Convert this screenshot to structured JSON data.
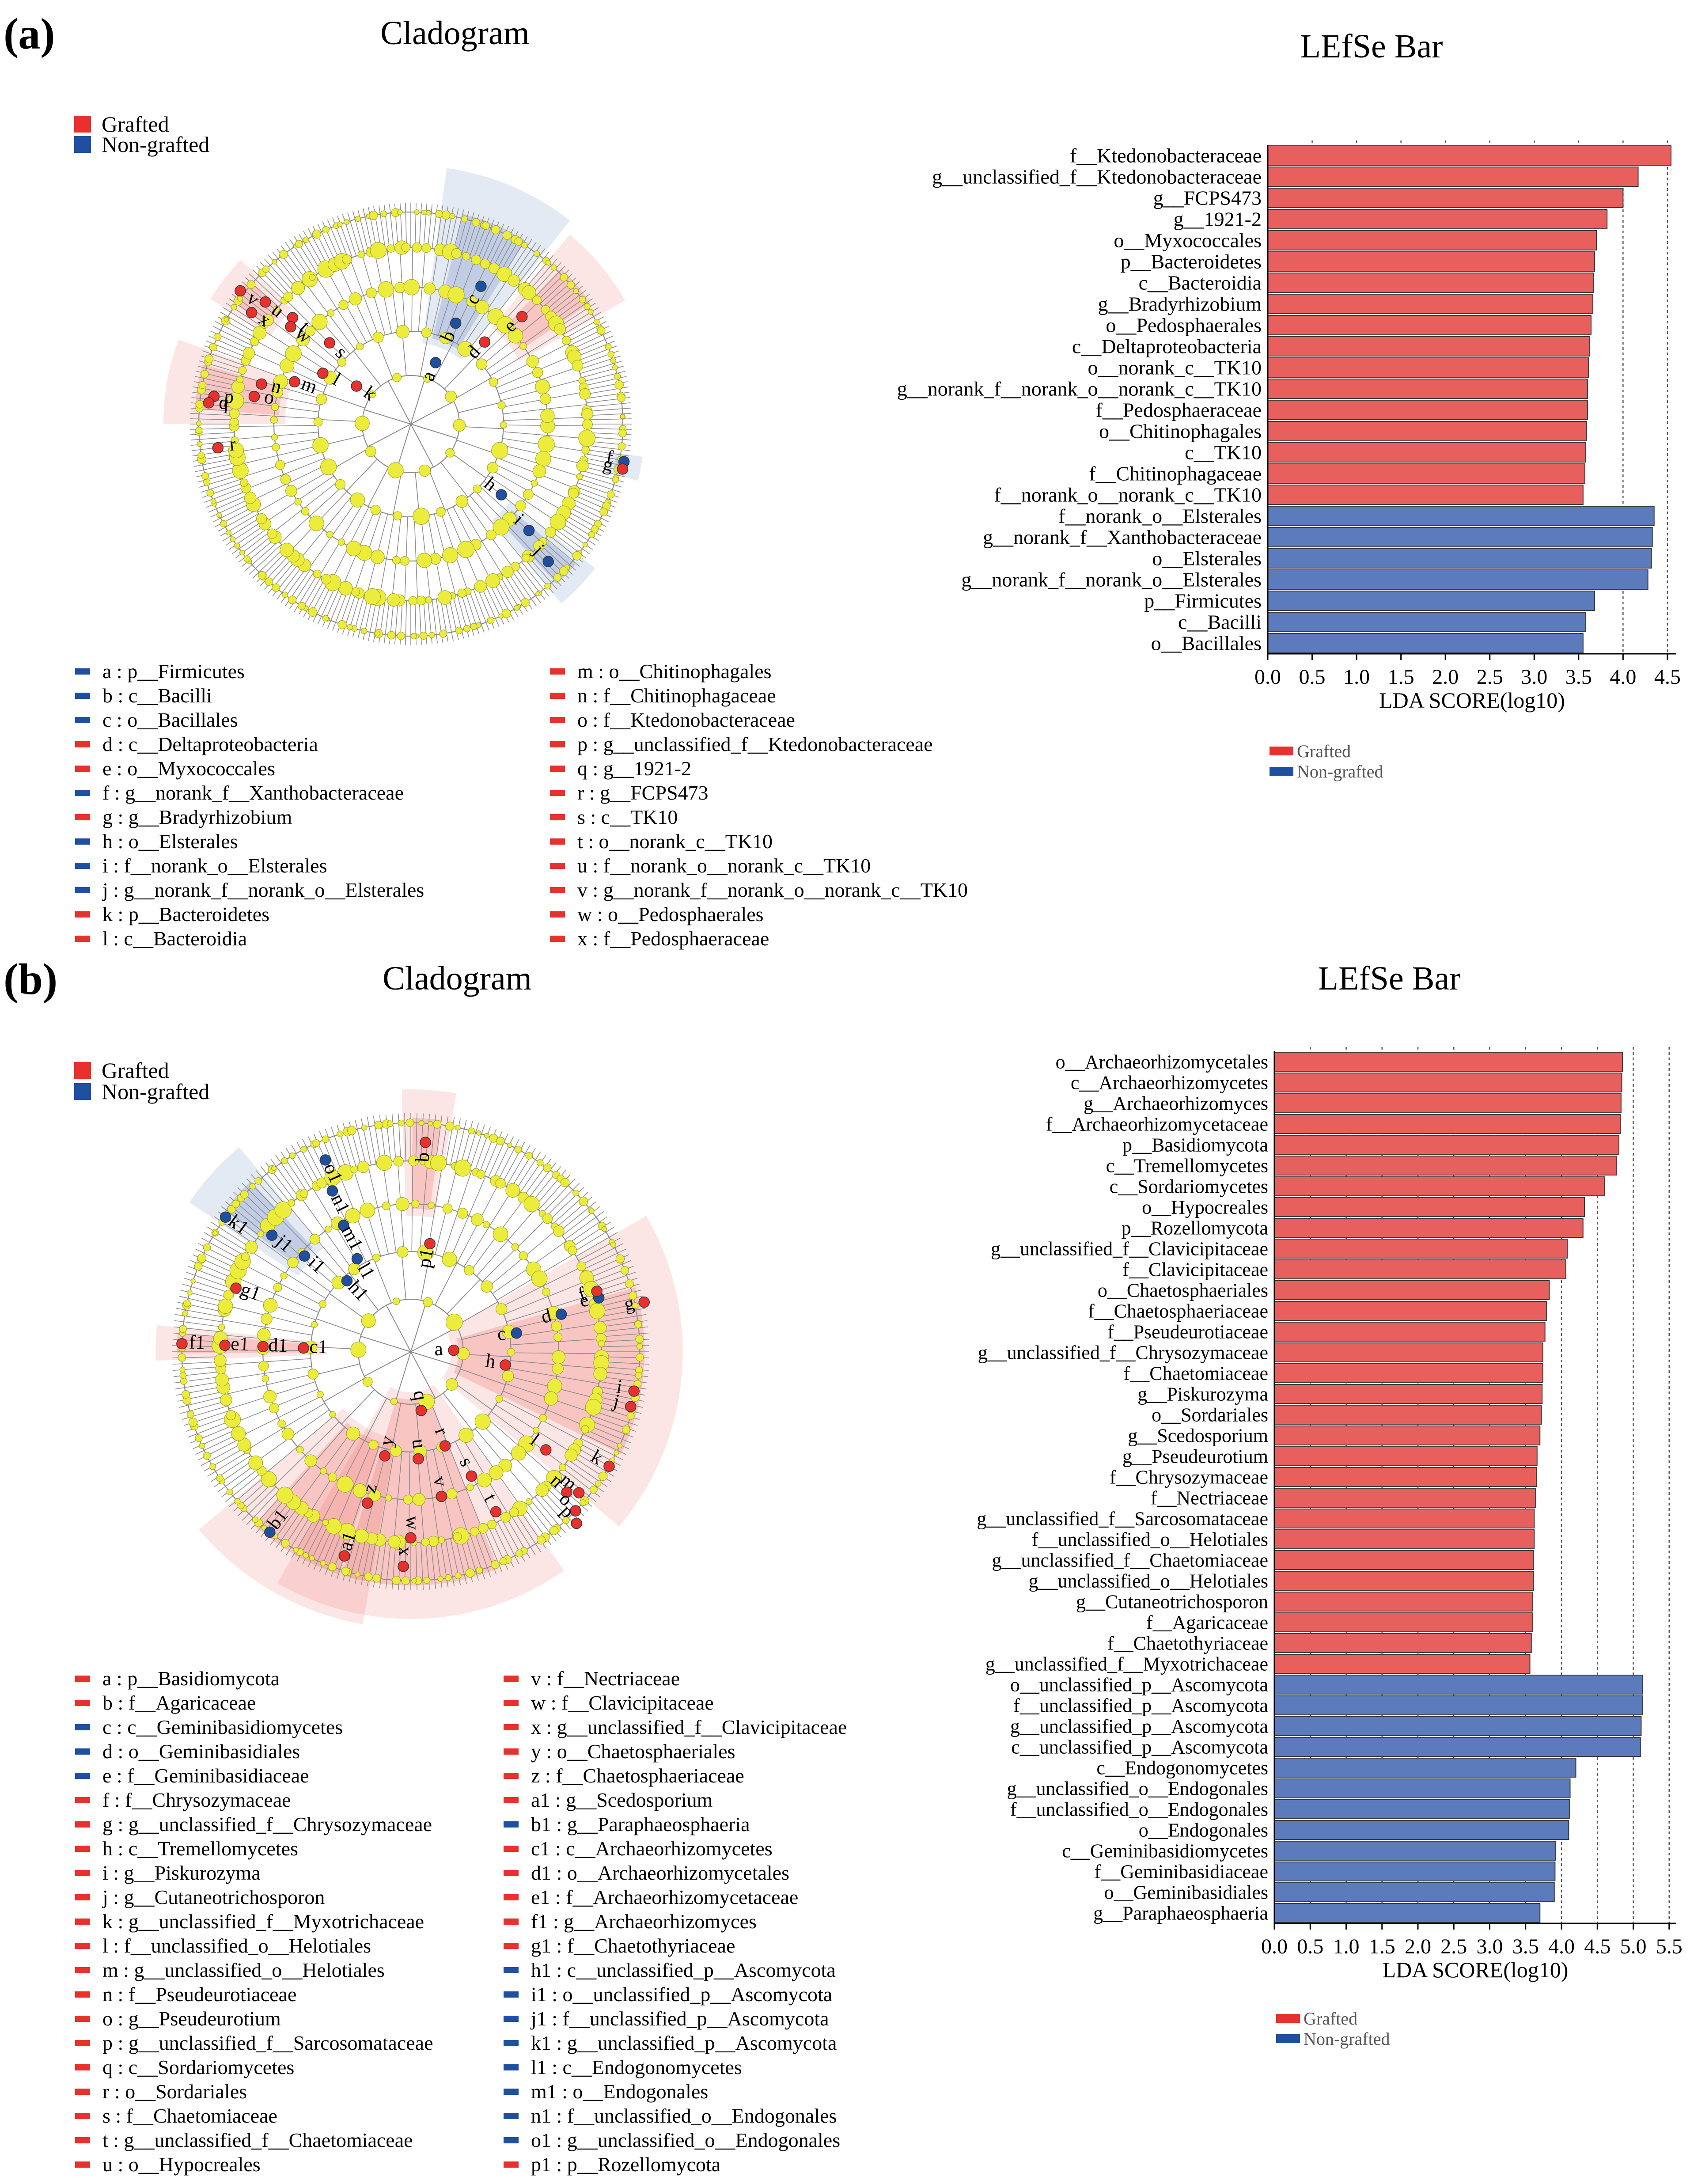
{
  "colors": {
    "grafted": "#e8302c",
    "non_grafted": "#1f4fa0",
    "bar_red": "#e8605e",
    "bar_blue": "#5b7bbd",
    "node_yellow": "#ecec3c",
    "tree_gray": "#8c8c8c"
  },
  "panels": [
    {
      "label": "(a)",
      "cladogram_title": "Cladogram",
      "bar_title": "LEfSe Bar",
      "legend": {
        "grafted": "Grafted",
        "non_grafted": "Non-grafted"
      },
      "cladogram_markers": [
        {
          "letter": "a",
          "group": "non_grafted"
        },
        {
          "letter": "b",
          "group": "non_grafted"
        },
        {
          "letter": "c",
          "group": "non_grafted"
        },
        {
          "letter": "d",
          "group": "grafted"
        },
        {
          "letter": "e",
          "group": "grafted"
        },
        {
          "letter": "f",
          "group": "non_grafted"
        },
        {
          "letter": "g",
          "group": "grafted"
        },
        {
          "letter": "h",
          "group": "non_grafted"
        },
        {
          "letter": "i",
          "group": "non_grafted"
        },
        {
          "letter": "j",
          "group": "non_grafted"
        },
        {
          "letter": "k",
          "group": "grafted"
        },
        {
          "letter": "l",
          "group": "grafted"
        },
        {
          "letter": "m",
          "group": "grafted"
        },
        {
          "letter": "n",
          "group": "grafted"
        },
        {
          "letter": "o",
          "group": "grafted"
        },
        {
          "letter": "p",
          "group": "grafted"
        },
        {
          "letter": "q",
          "group": "grafted"
        },
        {
          "letter": "r",
          "group": "grafted"
        },
        {
          "letter": "s",
          "group": "grafted"
        },
        {
          "letter": "t",
          "group": "grafted"
        },
        {
          "letter": "u",
          "group": "grafted"
        },
        {
          "letter": "v",
          "group": "grafted"
        },
        {
          "letter": "w",
          "group": "grafted"
        },
        {
          "letter": "x",
          "group": "grafted"
        }
      ],
      "key": [
        {
          "label": "a : p__Firmicutes",
          "group": "non_grafted"
        },
        {
          "label": "b : c__Bacilli",
          "group": "non_grafted"
        },
        {
          "label": "c : o__Bacillales",
          "group": "non_grafted"
        },
        {
          "label": "d : c__Deltaproteobacteria",
          "group": "grafted"
        },
        {
          "label": "e : o__Myxococcales",
          "group": "grafted"
        },
        {
          "label": "f : g__norank_f__Xanthobacteraceae",
          "group": "non_grafted"
        },
        {
          "label": "g : g__Bradyrhizobium",
          "group": "grafted"
        },
        {
          "label": "h : o__Elsterales",
          "group": "non_grafted"
        },
        {
          "label": "i : f__norank_o__Elsterales",
          "group": "non_grafted"
        },
        {
          "label": "j : g__norank_f__norank_o__Elsterales",
          "group": "non_grafted"
        },
        {
          "label": "k : p__Bacteroidetes",
          "group": "grafted"
        },
        {
          "label": "l : c__Bacteroidia",
          "group": "grafted"
        },
        {
          "label": "m : o__Chitinophagales",
          "group": "grafted"
        },
        {
          "label": "n : f__Chitinophagaceae",
          "group": "grafted"
        },
        {
          "label": "o : f__Ktedonobacteraceae",
          "group": "grafted"
        },
        {
          "label": "p : g__unclassified_f__Ktedonobacteraceae",
          "group": "grafted"
        },
        {
          "label": "q : g__1921-2",
          "group": "grafted"
        },
        {
          "label": "r : g__FCPS473",
          "group": "grafted"
        },
        {
          "label": "s : c__TK10",
          "group": "grafted"
        },
        {
          "label": "t : o__norank_c__TK10",
          "group": "grafted"
        },
        {
          "label": "u : f__norank_o__norank_c__TK10",
          "group": "grafted"
        },
        {
          "label": "v : g__norank_f__norank_o__norank_c__TK10",
          "group": "grafted"
        },
        {
          "label": "w : o__Pedosphaerales",
          "group": "grafted"
        },
        {
          "label": "x : f__Pedosphaeraceae",
          "group": "grafted"
        }
      ]
    },
    {
      "label": "(b)",
      "cladogram_title": "Cladogram",
      "bar_title": "LEfSe Bar",
      "legend": {
        "grafted": "Grafted",
        "non_grafted": "Non-grafted"
      },
      "cladogram_markers": [
        {
          "letter": "a",
          "group": "grafted"
        },
        {
          "letter": "b",
          "group": "grafted"
        },
        {
          "letter": "c",
          "group": "non_grafted"
        },
        {
          "letter": "d",
          "group": "non_grafted"
        },
        {
          "letter": "e",
          "group": "non_grafted"
        },
        {
          "letter": "f",
          "group": "grafted"
        },
        {
          "letter": "g",
          "group": "grafted"
        },
        {
          "letter": "h",
          "group": "grafted"
        },
        {
          "letter": "i",
          "group": "grafted"
        },
        {
          "letter": "j",
          "group": "grafted"
        },
        {
          "letter": "k",
          "group": "grafted"
        },
        {
          "letter": "l",
          "group": "grafted"
        },
        {
          "letter": "m",
          "group": "grafted"
        },
        {
          "letter": "n",
          "group": "grafted"
        },
        {
          "letter": "o",
          "group": "grafted"
        },
        {
          "letter": "p",
          "group": "grafted"
        },
        {
          "letter": "q",
          "group": "grafted"
        },
        {
          "letter": "r",
          "group": "grafted"
        },
        {
          "letter": "s",
          "group": "grafted"
        },
        {
          "letter": "t",
          "group": "grafted"
        },
        {
          "letter": "u",
          "group": "grafted"
        },
        {
          "letter": "v",
          "group": "grafted"
        },
        {
          "letter": "w",
          "group": "grafted"
        },
        {
          "letter": "x",
          "group": "grafted"
        },
        {
          "letter": "y",
          "group": "grafted"
        },
        {
          "letter": "z",
          "group": "grafted"
        },
        {
          "letter": "a1",
          "group": "grafted"
        },
        {
          "letter": "b1",
          "group": "non_grafted"
        },
        {
          "letter": "c1",
          "group": "grafted"
        },
        {
          "letter": "d1",
          "group": "grafted"
        },
        {
          "letter": "e1",
          "group": "grafted"
        },
        {
          "letter": "f1",
          "group": "grafted"
        },
        {
          "letter": "g1",
          "group": "grafted"
        },
        {
          "letter": "h1",
          "group": "non_grafted"
        },
        {
          "letter": "i1",
          "group": "non_grafted"
        },
        {
          "letter": "j1",
          "group": "non_grafted"
        },
        {
          "letter": "k1",
          "group": "non_grafted"
        },
        {
          "letter": "l1",
          "group": "non_grafted"
        },
        {
          "letter": "m1",
          "group": "non_grafted"
        },
        {
          "letter": "n1",
          "group": "non_grafted"
        },
        {
          "letter": "o1",
          "group": "non_grafted"
        },
        {
          "letter": "p1",
          "group": "grafted"
        }
      ],
      "key": [
        {
          "label": "a : p__Basidiomycota",
          "group": "grafted"
        },
        {
          "label": "b : f__Agaricaceae",
          "group": "grafted"
        },
        {
          "label": "c : c__Geminibasidiomycetes",
          "group": "non_grafted"
        },
        {
          "label": "d : o__Geminibasidiales",
          "group": "non_grafted"
        },
        {
          "label": "e : f__Geminibasidiaceae",
          "group": "non_grafted"
        },
        {
          "label": "f : f__Chrysozymaceae",
          "group": "grafted"
        },
        {
          "label": "g : g__unclassified_f__Chrysozymaceae",
          "group": "grafted"
        },
        {
          "label": "h : c__Tremellomycetes",
          "group": "grafted"
        },
        {
          "label": "i : g__Piskurozyma",
          "group": "grafted"
        },
        {
          "label": "j : g__Cutaneotrichosporon",
          "group": "grafted"
        },
        {
          "label": "k : g__unclassified_f__Myxotrichaceae",
          "group": "grafted"
        },
        {
          "label": "l : f__unclassified_o__Helotiales",
          "group": "grafted"
        },
        {
          "label": "m : g__unclassified_o__Helotiales",
          "group": "grafted"
        },
        {
          "label": "n : f__Pseudeurotiaceae",
          "group": "grafted"
        },
        {
          "label": "o : g__Pseudeurotium",
          "group": "grafted"
        },
        {
          "label": "p : g__unclassified_f__Sarcosomataceae",
          "group": "grafted"
        },
        {
          "label": "q : c__Sordariomycetes",
          "group": "grafted"
        },
        {
          "label": "r : o__Sordariales",
          "group": "grafted"
        },
        {
          "label": "s : f__Chaetomiaceae",
          "group": "grafted"
        },
        {
          "label": "t : g__unclassified_f__Chaetomiaceae",
          "group": "grafted"
        },
        {
          "label": "u : o__Hypocreales",
          "group": "grafted"
        },
        {
          "label": "v : f__Nectriaceae",
          "group": "grafted"
        },
        {
          "label": "w : f__Clavicipitaceae",
          "group": "grafted"
        },
        {
          "label": "x : g__unclassified_f__Clavicipitaceae",
          "group": "grafted"
        },
        {
          "label": "y : o__Chaetosphaeriales",
          "group": "grafted"
        },
        {
          "label": "z : f__Chaetosphaeriaceae",
          "group": "grafted"
        },
        {
          "label": "a1 : g__Scedosporium",
          "group": "grafted"
        },
        {
          "label": "b1 : g__Paraphaeosphaeria",
          "group": "non_grafted"
        },
        {
          "label": "c1 : c__Archaeorhizomycetes",
          "group": "grafted"
        },
        {
          "label": "d1 : o__Archaeorhizomycetales",
          "group": "grafted"
        },
        {
          "label": "e1 : f__Archaeorhizomycetaceae",
          "group": "grafted"
        },
        {
          "label": "f1 : g__Archaeorhizomyces",
          "group": "grafted"
        },
        {
          "label": "g1 : f__Chaetothyriaceae",
          "group": "grafted"
        },
        {
          "label": "h1 : c__unclassified_p__Ascomycota",
          "group": "non_grafted"
        },
        {
          "label": "i1 : o__unclassified_p__Ascomycota",
          "group": "non_grafted"
        },
        {
          "label": "j1 : f__unclassified_p__Ascomycota",
          "group": "non_grafted"
        },
        {
          "label": "k1 : g__unclassified_p__Ascomycota",
          "group": "non_grafted"
        },
        {
          "label": "l1 : c__Endogonomycetes",
          "group": "non_grafted"
        },
        {
          "label": "m1 : o__Endogonales",
          "group": "non_grafted"
        },
        {
          "label": "n1 : f__unclassified_o__Endogonales",
          "group": "non_grafted"
        },
        {
          "label": "o1 : g__unclassified_o__Endogonales",
          "group": "non_grafted"
        },
        {
          "label": "p1 : p__Rozellomycota",
          "group": "grafted"
        }
      ]
    }
  ],
  "chart_data": [
    {
      "type": "bar",
      "orientation": "horizontal",
      "title": "LEfSe Bar",
      "xlabel": "LDA SCORE(log10)",
      "xlim": [
        0,
        4.6
      ],
      "ticks": [
        "0.0",
        "0.5",
        "1.0",
        "1.5",
        "2.0",
        "2.5",
        "3.0",
        "3.5",
        "4.0",
        "4.5"
      ],
      "legend": [
        "Grafted",
        "Non-grafted"
      ],
      "legend_position": "bottom-left",
      "grid": "dashed vertical",
      "categories": [
        "f__Ktedonobacteraceae",
        "g__unclassified_f__Ktedonobacteraceae",
        "g__FCPS473",
        "g__1921-2",
        "o__Myxococcales",
        "p__Bacteroidetes",
        "c__Bacteroidia",
        "g__Bradyrhizobium",
        "o__Pedosphaerales",
        "c__Deltaproteobacteria",
        "o__norank_c__TK10",
        "g__norank_f__norank_o__norank_c__TK10",
        "f__Pedosphaeraceae",
        "o__Chitinophagales",
        "c__TK10",
        "f__Chitinophagaceae",
        "f__norank_o__norank_c__TK10",
        "f__norank_o__Elsterales",
        "g__norank_f__Xanthobacteraceae",
        "o__Elsterales",
        "g__norank_f__norank_o__Elsterales",
        "p__Firmicutes",
        "c__Bacilli",
        "o__Bacillales"
      ],
      "values": [
        4.54,
        4.17,
        4.0,
        3.82,
        3.7,
        3.68,
        3.67,
        3.66,
        3.64,
        3.62,
        3.61,
        3.6,
        3.6,
        3.59,
        3.58,
        3.57,
        3.55,
        4.35,
        4.33,
        4.32,
        4.28,
        3.68,
        3.58,
        3.55
      ],
      "groups": [
        "Grafted",
        "Grafted",
        "Grafted",
        "Grafted",
        "Grafted",
        "Grafted",
        "Grafted",
        "Grafted",
        "Grafted",
        "Grafted",
        "Grafted",
        "Grafted",
        "Grafted",
        "Grafted",
        "Grafted",
        "Grafted",
        "Grafted",
        "Non-grafted",
        "Non-grafted",
        "Non-grafted",
        "Non-grafted",
        "Non-grafted",
        "Non-grafted",
        "Non-grafted"
      ]
    },
    {
      "type": "bar",
      "orientation": "horizontal",
      "title": "LEfSe Bar",
      "xlabel": "LDA SCORE(log10)",
      "xlim": [
        0,
        5.6
      ],
      "ticks": [
        "0.0",
        "0.5",
        "1.0",
        "1.5",
        "2.0",
        "2.5",
        "3.0",
        "3.5",
        "4.0",
        "4.5",
        "5.0",
        "5.5"
      ],
      "legend": [
        "Grafted",
        "Non-grafted"
      ],
      "legend_position": "bottom-left",
      "grid": "dashed vertical",
      "categories": [
        "o__Archaeorhizomycetales",
        "c__Archaeorhizomycetes",
        "g__Archaeorhizomyces",
        "f__Archaeorhizomycetaceae",
        "p__Basidiomycota",
        "c__Tremellomycetes",
        "c__Sordariomycetes",
        "o__Hypocreales",
        "p__Rozellomycota",
        "g__unclassified_f__Clavicipitaceae",
        "f__Clavicipitaceae",
        "o__Chaetosphaeriales",
        "f__Chaetosphaeriaceae",
        "f__Pseudeurotiaceae",
        "g__unclassified_f__Chrysozymaceae",
        "f__Chaetomiaceae",
        "g__Piskurozyma",
        "o__Sordariales",
        "g__Scedosporium",
        "g__Pseudeurotium",
        "f__Chrysozymaceae",
        "f__Nectriaceae",
        "g__unclassified_f__Sarcosomataceae",
        "f__unclassified_o__Helotiales",
        "g__unclassified_f__Chaetomiaceae",
        "g__unclassified_o__Helotiales",
        "g__Cutaneotrichosporon",
        "f__Agaricaceae",
        "f__Chaetothyriaceae",
        "g__unclassified_f__Myxotrichaceae",
        "o__unclassified_p__Ascomycota",
        "f__unclassified_p__Ascomycota",
        "g__unclassified_p__Ascomycota",
        "c__unclassified_p__Ascomycota",
        "c__Endogonomycetes",
        "g__unclassified_o__Endogonales",
        "f__unclassified_o__Endogonales",
        "o__Endogonales",
        "c__Geminibasidiomycetes",
        "f__Geminibasidiaceae",
        "o__Geminibasidiales",
        "g__Paraphaeosphaeria"
      ],
      "values": [
        4.85,
        4.84,
        4.83,
        4.82,
        4.8,
        4.77,
        4.6,
        4.32,
        4.3,
        4.08,
        4.06,
        3.83,
        3.79,
        3.77,
        3.74,
        3.74,
        3.73,
        3.72,
        3.7,
        3.66,
        3.65,
        3.64,
        3.62,
        3.62,
        3.61,
        3.61,
        3.6,
        3.6,
        3.58,
        3.56,
        5.13,
        5.13,
        5.11,
        5.1,
        4.2,
        4.12,
        4.11,
        4.1,
        3.92,
        3.91,
        3.9,
        3.7
      ],
      "groups": [
        "Grafted",
        "Grafted",
        "Grafted",
        "Grafted",
        "Grafted",
        "Grafted",
        "Grafted",
        "Grafted",
        "Grafted",
        "Grafted",
        "Grafted",
        "Grafted",
        "Grafted",
        "Grafted",
        "Grafted",
        "Grafted",
        "Grafted",
        "Grafted",
        "Grafted",
        "Grafted",
        "Grafted",
        "Grafted",
        "Grafted",
        "Grafted",
        "Grafted",
        "Grafted",
        "Grafted",
        "Grafted",
        "Grafted",
        "Grafted",
        "Non-grafted",
        "Non-grafted",
        "Non-grafted",
        "Non-grafted",
        "Non-grafted",
        "Non-grafted",
        "Non-grafted",
        "Non-grafted",
        "Non-grafted",
        "Non-grafted",
        "Non-grafted",
        "Non-grafted"
      ]
    }
  ]
}
